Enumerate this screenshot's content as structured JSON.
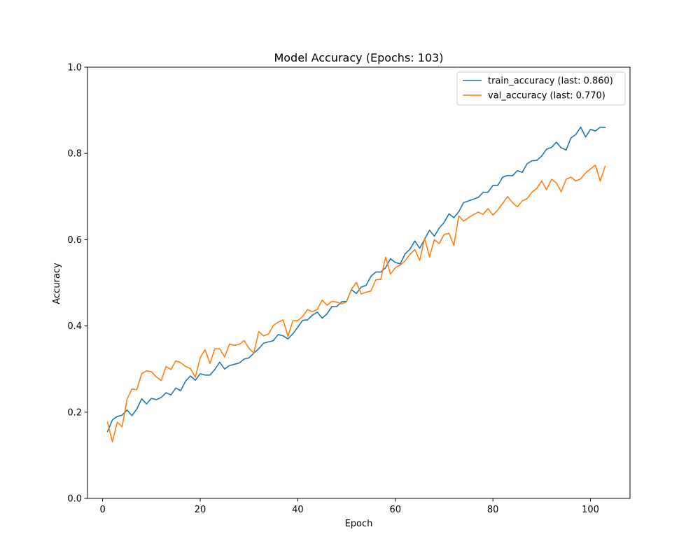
{
  "chart_data": {
    "type": "line",
    "title": "Model Accuracy (Epochs: 103)",
    "xlabel": "Epoch",
    "ylabel": "Accuracy",
    "xlim": [
      -3.1,
      108.1
    ],
    "ylim": [
      0.0,
      1.0
    ],
    "xticks": [
      0,
      20,
      40,
      60,
      80,
      100
    ],
    "yticks": [
      0.0,
      0.2,
      0.4,
      0.6,
      0.8,
      1.0
    ],
    "grid": false,
    "legend_position": "top-right",
    "x": [
      1,
      2,
      3,
      4,
      5,
      6,
      7,
      8,
      9,
      10,
      11,
      12,
      13,
      14,
      15,
      16,
      17,
      18,
      19,
      20,
      21,
      22,
      23,
      24,
      25,
      26,
      27,
      28,
      29,
      30,
      31,
      32,
      33,
      34,
      35,
      36,
      37,
      38,
      39,
      40,
      41,
      42,
      43,
      44,
      45,
      46,
      47,
      48,
      49,
      50,
      51,
      52,
      53,
      54,
      55,
      56,
      57,
      58,
      59,
      60,
      61,
      62,
      63,
      64,
      65,
      66,
      67,
      68,
      69,
      70,
      71,
      72,
      73,
      74,
      75,
      76,
      77,
      78,
      79,
      80,
      81,
      82,
      83,
      84,
      85,
      86,
      87,
      88,
      89,
      90,
      91,
      92,
      93,
      94,
      95,
      96,
      97,
      98,
      99,
      100,
      101,
      102,
      103
    ],
    "series": [
      {
        "name": "train_accuracy (last: 0.860)",
        "color": "#1f77b4",
        "values": [
          0.155,
          0.182,
          0.19,
          0.193,
          0.205,
          0.192,
          0.207,
          0.231,
          0.219,
          0.232,
          0.229,
          0.234,
          0.245,
          0.24,
          0.256,
          0.25,
          0.272,
          0.284,
          0.274,
          0.289,
          0.286,
          0.286,
          0.299,
          0.316,
          0.3,
          0.308,
          0.311,
          0.314,
          0.323,
          0.326,
          0.337,
          0.347,
          0.36,
          0.363,
          0.366,
          0.38,
          0.377,
          0.37,
          0.382,
          0.397,
          0.413,
          0.414,
          0.425,
          0.432,
          0.418,
          0.428,
          0.445,
          0.445,
          0.456,
          0.457,
          0.484,
          0.475,
          0.49,
          0.494,
          0.515,
          0.525,
          0.525,
          0.535,
          0.556,
          0.547,
          0.544,
          0.567,
          0.578,
          0.597,
          0.58,
          0.601,
          0.622,
          0.608,
          0.627,
          0.64,
          0.66,
          0.651,
          0.665,
          0.686,
          0.69,
          0.694,
          0.698,
          0.71,
          0.71,
          0.726,
          0.726,
          0.745,
          0.749,
          0.748,
          0.76,
          0.756,
          0.776,
          0.783,
          0.784,
          0.794,
          0.81,
          0.814,
          0.826,
          0.813,
          0.808,
          0.836,
          0.844,
          0.861,
          0.838,
          0.856,
          0.852,
          0.861,
          0.86
        ]
      },
      {
        "name": "val_accuracy (last: 0.770)",
        "color": "#ff7f0e",
        "values": [
          0.177,
          0.131,
          0.177,
          0.166,
          0.23,
          0.254,
          0.252,
          0.289,
          0.296,
          0.294,
          0.282,
          0.273,
          0.306,
          0.299,
          0.319,
          0.315,
          0.306,
          0.301,
          0.281,
          0.326,
          0.345,
          0.313,
          0.347,
          0.347,
          0.328,
          0.358,
          0.355,
          0.357,
          0.366,
          0.348,
          0.337,
          0.387,
          0.377,
          0.381,
          0.401,
          0.409,
          0.414,
          0.376,
          0.412,
          0.412,
          0.422,
          0.438,
          0.433,
          0.438,
          0.46,
          0.448,
          0.457,
          0.455,
          0.451,
          0.456,
          0.485,
          0.501,
          0.474,
          0.478,
          0.481,
          0.507,
          0.508,
          0.56,
          0.52,
          0.535,
          0.541,
          0.551,
          0.566,
          0.577,
          0.552,
          0.603,
          0.56,
          0.6,
          0.591,
          0.612,
          0.615,
          0.587,
          0.655,
          0.643,
          0.651,
          0.658,
          0.664,
          0.659,
          0.672,
          0.657,
          0.669,
          0.684,
          0.7,
          0.686,
          0.676,
          0.69,
          0.695,
          0.71,
          0.719,
          0.736,
          0.716,
          0.74,
          0.732,
          0.711,
          0.74,
          0.745,
          0.736,
          0.741,
          0.755,
          0.764,
          0.773,
          0.736,
          0.77
        ]
      }
    ]
  }
}
